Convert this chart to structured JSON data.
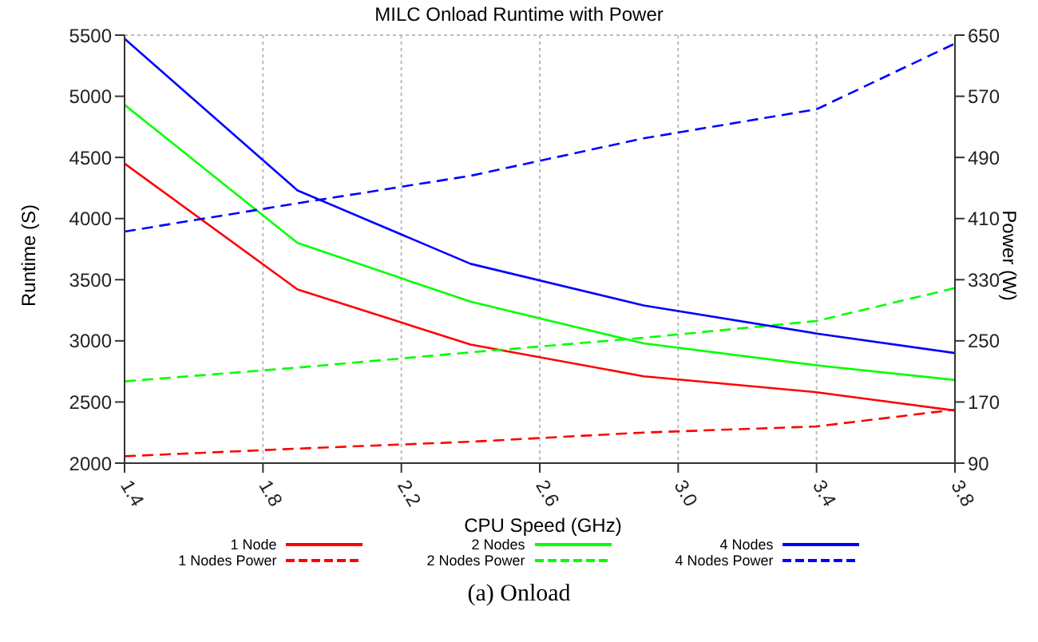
{
  "chart_data": {
    "type": "line",
    "title": "MILC Onload Runtime with Power",
    "xlabel": "CPU Speed (GHz)",
    "ylabel": "Runtime (S)",
    "y2label": "Power (W)",
    "x": [
      1.4,
      1.9,
      2.4,
      2.9,
      3.4,
      3.8
    ],
    "xlim": [
      1.4,
      3.8
    ],
    "xticks": [
      1.4,
      1.8,
      2.2,
      2.6,
      {
        "value": 3,
        "label": "3.0"
      },
      3.4,
      3.8
    ],
    "ylim": [
      2000,
      5500
    ],
    "yticks": [
      2000,
      2500,
      3000,
      3500,
      4000,
      4500,
      5000,
      5500
    ],
    "y2lim": [
      90,
      650
    ],
    "y2ticks": [
      90,
      170,
      250,
      330,
      410,
      490,
      570,
      650
    ],
    "grid": true,
    "legend": "bottom",
    "marker": "none",
    "series": [
      {
        "name": "1 Node",
        "color": "#ff0000",
        "values": [
          4450,
          3420,
          2970,
          2710,
          2580,
          2430
        ]
      },
      {
        "name": "1 Nodes Power",
        "color": "#ff0000",
        "axis": "y2",
        "line_style": "dashed",
        "values": [
          99,
          109,
          118,
          130,
          138,
          160
        ]
      },
      {
        "name": "2 Nodes",
        "color": "#00ff00",
        "values": [
          4930,
          3800,
          3320,
          2980,
          2800,
          2680
        ]
      },
      {
        "name": "2 Nodes Power",
        "color": "#00ff00",
        "axis": "y2",
        "line_style": "dashed",
        "values": [
          197,
          215,
          235,
          254,
          276,
          319
        ]
      },
      {
        "name": "4 Nodes",
        "color": "#0000ff",
        "values": [
          5470,
          4230,
          3630,
          3290,
          3060,
          2900
        ]
      },
      {
        "name": "4 Nodes Power",
        "color": "#0000ff",
        "axis": "y2",
        "line_style": "dashed",
        "values": [
          393,
          430,
          466,
          515,
          553,
          639
        ]
      }
    ],
    "annotations": [
      "(a) Onload"
    ]
  }
}
